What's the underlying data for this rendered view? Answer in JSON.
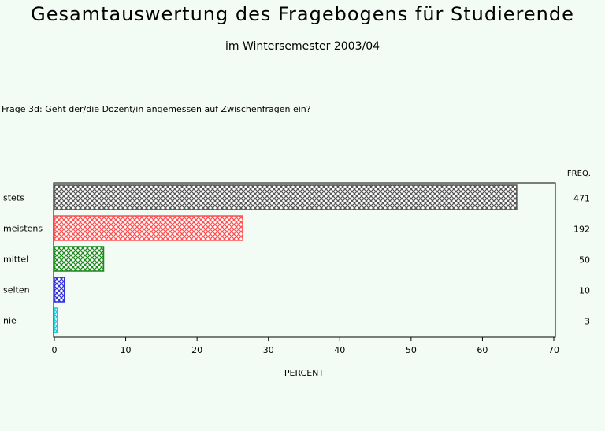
{
  "header": {
    "title": "Gesamtauswertung des Fragebogens für Studierende",
    "subtitle": "im Wintersemester 2003/04",
    "question": "Frage 3d: Geht der/die Dozent/in angemessen auf Zwischenfragen ein?"
  },
  "chart_data": {
    "type": "bar",
    "orientation": "horizontal",
    "categories": [
      "stets",
      "meistens",
      "mittel",
      "selten",
      "nie"
    ],
    "values": [
      64.8,
      26.4,
      6.9,
      1.4,
      0.4
    ],
    "freq": [
      471,
      192,
      50,
      10,
      3
    ],
    "freq_label": "FREQ.",
    "xlabel": "PERCENT",
    "xlim": [
      0,
      70
    ],
    "xticks": [
      0,
      10,
      20,
      30,
      40,
      50,
      60,
      70
    ],
    "colors": [
      "#555555",
      "#ff5050",
      "#1a8a1a",
      "#3030e0",
      "#20c8d8"
    ],
    "grid": false
  }
}
